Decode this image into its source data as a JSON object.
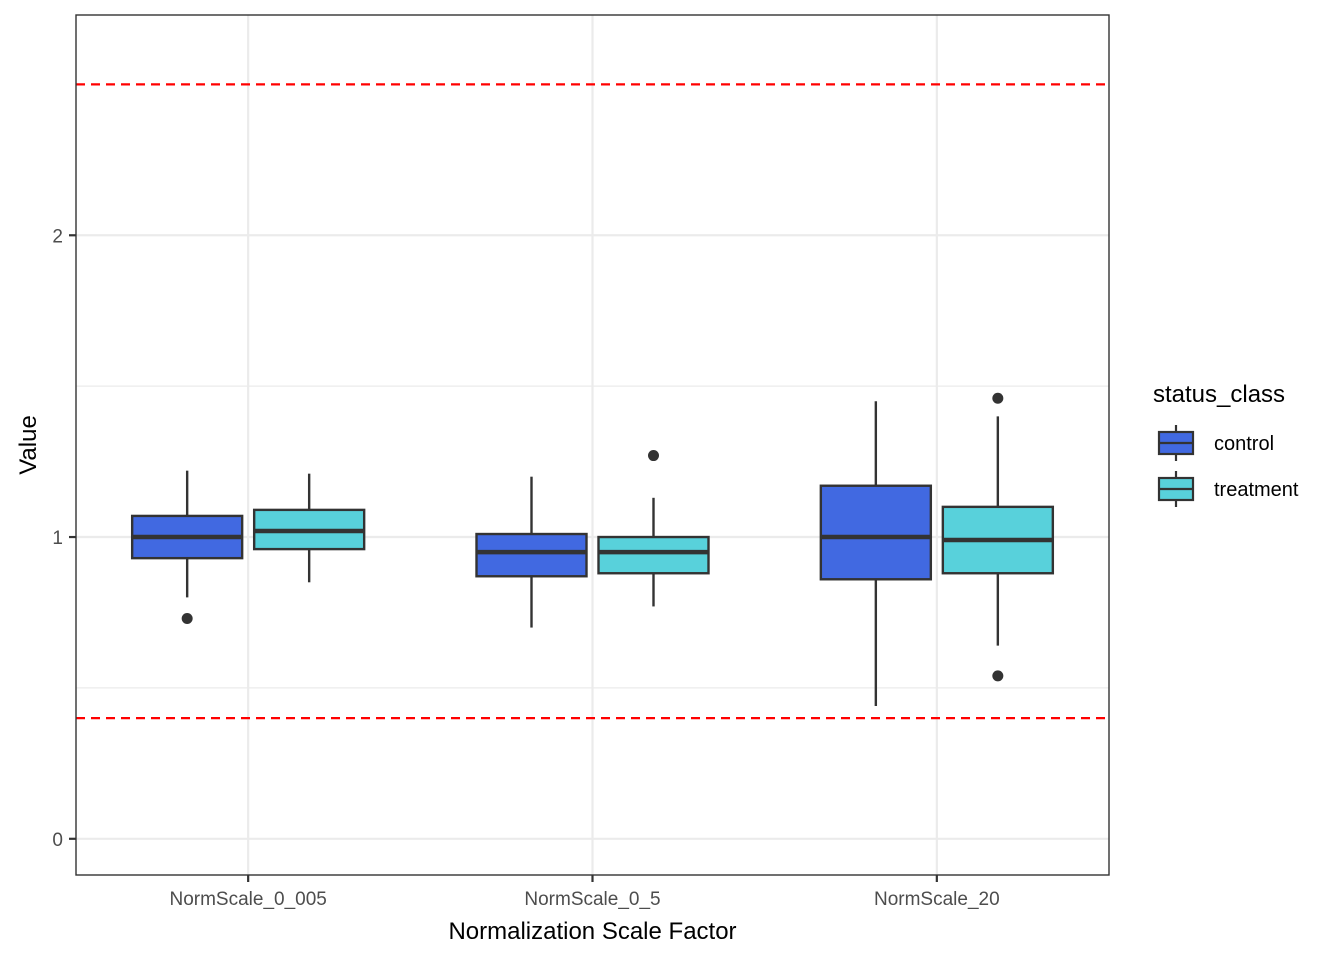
{
  "chart_data": {
    "type": "boxplot",
    "xlabel": "Normalization Scale Factor",
    "ylabel": "Value",
    "categories": [
      "NormScale_0_005",
      "NormScale_0_5",
      "NormScale_20"
    ],
    "y_ticks": [
      0,
      1,
      2
    ],
    "y_tick_labels": [
      "0",
      "1",
      "2"
    ],
    "ylim": [
      -0.12,
      2.73
    ],
    "grid": true,
    "legend": {
      "title": "status_class",
      "position": "right"
    },
    "series": [
      {
        "name": "control",
        "color": "#4169E1",
        "boxes": [
          {
            "category": "NormScale_0_005",
            "whisker_low": 0.8,
            "q1": 0.93,
            "median": 1.0,
            "q3": 1.07,
            "whisker_high": 1.22,
            "outliers": [
              0.73
            ]
          },
          {
            "category": "NormScale_0_5",
            "whisker_low": 0.7,
            "q1": 0.87,
            "median": 0.95,
            "q3": 1.01,
            "whisker_high": 1.2,
            "outliers": []
          },
          {
            "category": "NormScale_20",
            "whisker_low": 0.44,
            "q1": 0.86,
            "median": 1.0,
            "q3": 1.17,
            "whisker_high": 1.45,
            "outliers": []
          }
        ]
      },
      {
        "name": "treatment",
        "color": "#58D1DB",
        "boxes": [
          {
            "category": "NormScale_0_005",
            "whisker_low": 0.85,
            "q1": 0.96,
            "median": 1.02,
            "q3": 1.09,
            "whisker_high": 1.21,
            "outliers": []
          },
          {
            "category": "NormScale_0_5",
            "whisker_low": 0.77,
            "q1": 0.88,
            "median": 0.95,
            "q3": 1.0,
            "whisker_high": 1.13,
            "outliers": [
              1.27
            ]
          },
          {
            "category": "NormScale_20",
            "whisker_low": 0.64,
            "q1": 0.88,
            "median": 0.99,
            "q3": 1.1,
            "whisker_high": 1.4,
            "outliers": [
              1.46,
              0.54
            ]
          }
        ]
      }
    ],
    "reference_lines": [
      {
        "y": 2.5,
        "color": "#FF0000",
        "style": "dashed"
      },
      {
        "y": 0.4,
        "color": "#FF0000",
        "style": "dashed"
      }
    ]
  }
}
